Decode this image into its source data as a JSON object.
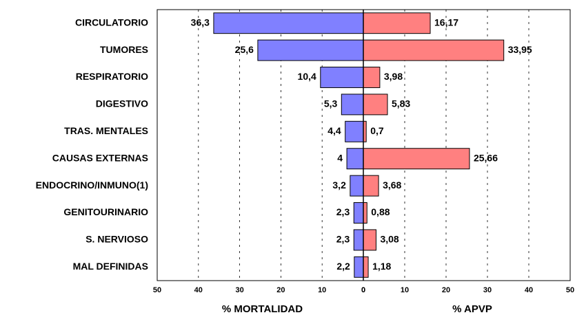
{
  "chart_data": {
    "type": "butterfly",
    "categories": [
      "CIRCULATORIO",
      "TUMORES",
      "RESPIRATORIO",
      "DIGESTIVO",
      "TRAS. MENTALES",
      "CAUSAS EXTERNAS",
      "ENDOCRINO/INMUNO(1)",
      "GENITOURINARIO",
      "S. NERVIOSO",
      "MAL DEFINIDAS"
    ],
    "series": [
      {
        "name": "% MORTALIDAD",
        "color": "#8080ff",
        "axis": "x",
        "values": [
          36.3,
          25.6,
          10.4,
          5.3,
          4.4,
          4,
          3.2,
          2.3,
          2.3,
          2.2
        ],
        "value_labels": [
          "36,3",
          "25,6",
          "10,4",
          "5,3",
          "4,4",
          "4",
          "3,2",
          "2,3",
          "2,3",
          "2,2"
        ]
      },
      {
        "name": "% APVP",
        "color": "#ff8080",
        "axis": "x2",
        "values": [
          16.17,
          33.95,
          3.98,
          5.83,
          0.7,
          25.66,
          3.68,
          0.88,
          3.08,
          1.18
        ],
        "value_labels": [
          "16,17",
          "33,95",
          "3,98",
          "5,83",
          "0,7",
          "25,66",
          "3,68",
          "0,88",
          "3,08",
          "1,18"
        ]
      }
    ],
    "xlim": [
      50,
      0
    ],
    "xticks": [
      50,
      40,
      30,
      20,
      10,
      0
    ],
    "x2lim": [
      0,
      50
    ],
    "x2ticks": [
      0,
      10,
      20,
      30,
      40,
      50
    ],
    "grid": true
  }
}
